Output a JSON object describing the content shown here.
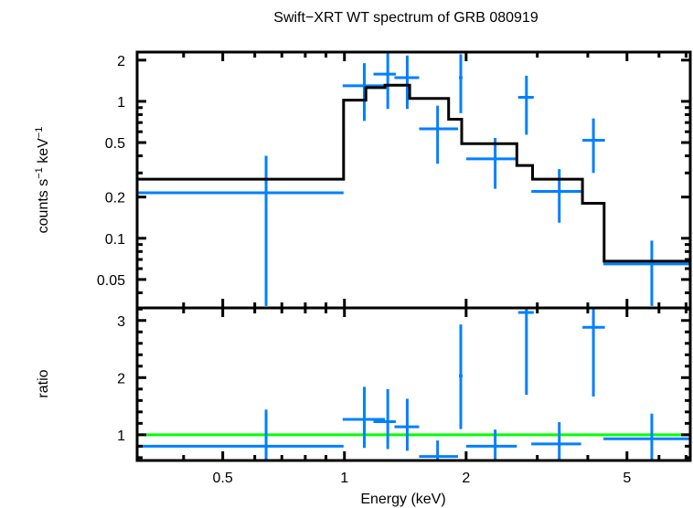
{
  "chart_data": {
    "type": "scatter",
    "title": "Swift−XRT WT spectrum of GRB 080919",
    "xlabel": "Energy (keV)",
    "xscale": "log",
    "xlim": [
      0.307,
      7.17
    ],
    "xticks": [
      {
        "value": 0.5,
        "label": "0.5"
      },
      {
        "value": 1,
        "label": "1"
      },
      {
        "value": 2,
        "label": "2"
      },
      {
        "value": 5,
        "label": "5"
      }
    ],
    "xminor": [
      0.4,
      0.6,
      0.7,
      0.8,
      0.9,
      3,
      4,
      6,
      7
    ],
    "colors": {
      "data": "#0080ff",
      "model": "#000000",
      "unity": "#00ff00",
      "axes": "#000000"
    },
    "panels": [
      {
        "name": "spectrum",
        "ylabel": "counts s⁻¹ keV⁻¹",
        "yscale": "log",
        "ylim": [
          0.031,
          2.29
        ],
        "yticks": [
          {
            "value": 0.05,
            "label": "0.05"
          },
          {
            "value": 0.1,
            "label": "0.1"
          },
          {
            "value": 0.2,
            "label": "0.2"
          },
          {
            "value": 0.5,
            "label": "0.5"
          },
          {
            "value": 1,
            "label": "1"
          },
          {
            "value": 2,
            "label": "2"
          }
        ],
        "yminor": [
          0.04,
          0.06,
          0.07,
          0.08,
          0.09,
          0.3,
          0.4,
          0.6,
          0.7,
          0.8,
          0.9
        ],
        "series": [
          {
            "name": "data",
            "points": [
              {
                "x": 0.64,
                "xlo": 0.307,
                "xhi": 0.995,
                "y": 0.215,
                "ylo": 0.032,
                "yhi": 0.4
              },
              {
                "x": 1.12,
                "xlo": 0.99,
                "xhi": 1.26,
                "y": 1.3,
                "ylo": 0.72,
                "yhi": 1.9
              },
              {
                "x": 1.28,
                "xlo": 1.18,
                "xhi": 1.34,
                "y": 1.58,
                "ylo": 0.88,
                "yhi": 2.29
              },
              {
                "x": 1.43,
                "xlo": 1.33,
                "xhi": 1.53,
                "y": 1.49,
                "ylo": 0.88,
                "yhi": 2.16
              },
              {
                "x": 1.7,
                "xlo": 1.53,
                "xhi": 1.91,
                "y": 0.63,
                "ylo": 0.35,
                "yhi": 0.93
              },
              {
                "x": 1.94,
                "xlo": 1.92,
                "xhi": 1.96,
                "y": 1.49,
                "ylo": 0.82,
                "yhi": 2.21
              },
              {
                "x": 2.36,
                "xlo": 2.0,
                "xhi": 2.67,
                "y": 0.38,
                "ylo": 0.23,
                "yhi": 0.54
              },
              {
                "x": 2.82,
                "xlo": 2.69,
                "xhi": 2.94,
                "y": 1.07,
                "ylo": 0.57,
                "yhi": 1.54
              },
              {
                "x": 3.4,
                "xlo": 2.9,
                "xhi": 3.85,
                "y": 0.22,
                "ylo": 0.13,
                "yhi": 0.32
              },
              {
                "x": 4.13,
                "xlo": 3.88,
                "xhi": 4.41,
                "y": 0.52,
                "ylo": 0.3,
                "yhi": 0.75
              },
              {
                "x": 5.76,
                "xlo": 4.37,
                "xhi": 7.17,
                "y": 0.065,
                "ylo": 0.032,
                "yhi": 0.096
              }
            ]
          },
          {
            "name": "model",
            "steps": [
              {
                "xlo": 0.307,
                "xhi": 0.995,
                "y": 0.27
              },
              {
                "xlo": 0.995,
                "xhi": 1.13,
                "y": 1.02
              },
              {
                "xlo": 1.13,
                "xhi": 1.26,
                "y": 1.26
              },
              {
                "xlo": 1.26,
                "xhi": 1.45,
                "y": 1.31
              },
              {
                "xlo": 1.45,
                "xhi": 1.81,
                "y": 1.05
              },
              {
                "xlo": 1.81,
                "xhi": 1.95,
                "y": 0.74
              },
              {
                "xlo": 1.95,
                "xhi": 2.67,
                "y": 0.49
              },
              {
                "xlo": 2.67,
                "xhi": 2.92,
                "y": 0.34
              },
              {
                "xlo": 2.92,
                "xhi": 3.88,
                "y": 0.27
              },
              {
                "xlo": 3.88,
                "xhi": 4.39,
                "y": 0.18
              },
              {
                "xlo": 4.39,
                "xhi": 7.17,
                "y": 0.068
              }
            ]
          }
        ]
      },
      {
        "name": "ratio",
        "ylabel": "ratio",
        "yscale": "linear",
        "ylim": [
          0.55,
          3.22
        ],
        "yticks": [
          {
            "value": 1,
            "label": "1"
          },
          {
            "value": 2,
            "label": "2"
          },
          {
            "value": 3,
            "label": "3"
          }
        ],
        "yminor": [
          0.6,
          0.8,
          1.2,
          1.4,
          1.6,
          1.8,
          2.2,
          2.4,
          2.6,
          2.8,
          3.2
        ],
        "unity": 1,
        "series": [
          {
            "name": "data",
            "points": [
              {
                "x": 0.64,
                "xlo": 0.307,
                "xhi": 0.995,
                "y": 0.8,
                "ylo": 0.55,
                "yhi": 1.44
              },
              {
                "x": 1.12,
                "xlo": 0.99,
                "xhi": 1.26,
                "y": 1.27,
                "ylo": 0.77,
                "yhi": 1.84
              },
              {
                "x": 1.28,
                "xlo": 1.18,
                "xhi": 1.34,
                "y": 1.23,
                "ylo": 0.75,
                "yhi": 1.8
              },
              {
                "x": 1.43,
                "xlo": 1.33,
                "xhi": 1.53,
                "y": 1.14,
                "ylo": 0.72,
                "yhi": 1.63
              },
              {
                "x": 1.7,
                "xlo": 1.53,
                "xhi": 1.91,
                "y": 0.62,
                "ylo": 0.55,
                "yhi": 0.9
              },
              {
                "x": 1.94,
                "xlo": 1.92,
                "xhi": 1.96,
                "y": 2.03,
                "ylo": 1.1,
                "yhi": 2.93
              },
              {
                "x": 2.36,
                "xlo": 2.0,
                "xhi": 2.67,
                "y": 0.8,
                "ylo": 0.55,
                "yhi": 1.09
              },
              {
                "x": 2.82,
                "xlo": 2.69,
                "xhi": 2.94,
                "y": 3.14,
                "ylo": 1.7,
                "yhi": 3.22
              },
              {
                "x": 3.4,
                "xlo": 2.9,
                "xhi": 3.85,
                "y": 0.84,
                "ylo": 0.55,
                "yhi": 1.22
              },
              {
                "x": 4.13,
                "xlo": 3.88,
                "xhi": 4.41,
                "y": 2.88,
                "ylo": 1.67,
                "yhi": 3.22
              },
              {
                "x": 5.76,
                "xlo": 4.37,
                "xhi": 7.17,
                "y": 0.93,
                "ylo": 0.55,
                "yhi": 1.37
              }
            ]
          }
        ]
      }
    ]
  }
}
